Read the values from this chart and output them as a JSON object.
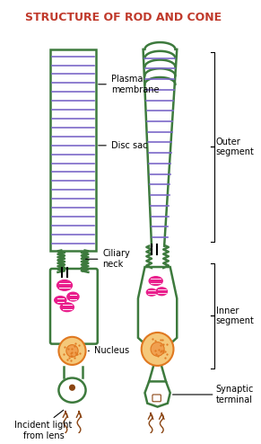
{
  "title": "STRUCTURE OF ROD AND CONE",
  "title_color": "#c0392b",
  "title_fontsize": 9,
  "bg_color": "#ffffff",
  "green_color": "#3d7a3d",
  "disc_color": "#7b68c8",
  "pink_color": "#e91e8c",
  "orange_color": "#e07820",
  "brown_color": "#8B4513",
  "labels": {
    "plasma_membrane": "Plasma\nmembrane",
    "disc_sac": "Disc sac",
    "ciliary_neck": "Ciliary\nneck",
    "nucleus": "Nucleus",
    "incident_light": "Incident light\nfrom lens",
    "outer_segment": "Outer\nsegment",
    "inner_segment": "Inner\nsegment",
    "synaptic_terminal": "Synaptic\nterminal"
  }
}
